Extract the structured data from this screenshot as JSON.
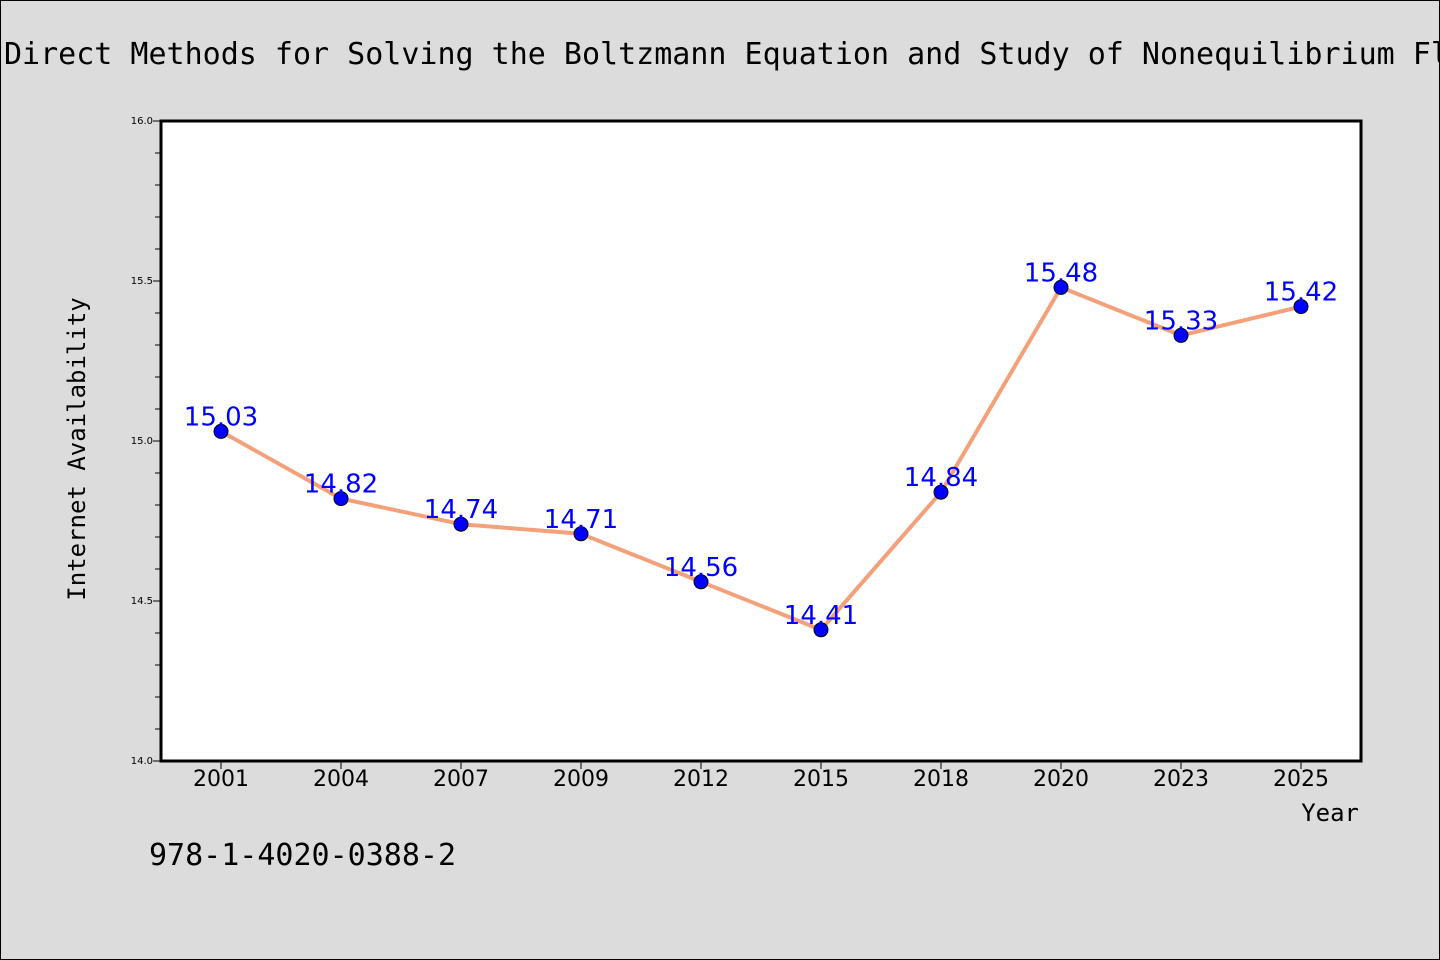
{
  "chart_data": {
    "type": "line",
    "title": "Direct Methods for Solving the Boltzmann Equation and Study of Nonequilibrium Fl",
    "xlabel": "Year",
    "ylabel": "Internet Availability",
    "categories": [
      "2001",
      "2004",
      "2007",
      "2009",
      "2012",
      "2015",
      "2018",
      "2020",
      "2023",
      "2025"
    ],
    "series": [
      {
        "values": [
          15.03,
          14.82,
          14.74,
          14.71,
          14.56,
          14.41,
          14.84,
          15.48,
          15.33,
          15.42
        ],
        "labels": [
          "15.03",
          "14.82",
          "14.74",
          "14.71",
          "14.56",
          "14.41",
          "14.84",
          "15.48",
          "15.33",
          "15.42"
        ]
      }
    ],
    "ylim": [
      14.0,
      16.0
    ],
    "yticks": [
      "14.0",
      "14.5",
      "15.0",
      "15.5",
      "16.0"
    ],
    "grid": false,
    "colors": {
      "line": "#f4a07a",
      "marker": "#0000ff",
      "data_label": "#0000ff",
      "background": "#dcdcdc",
      "plot_area": "#ffffff"
    },
    "annotation": "978-1-4020-0388-2"
  }
}
